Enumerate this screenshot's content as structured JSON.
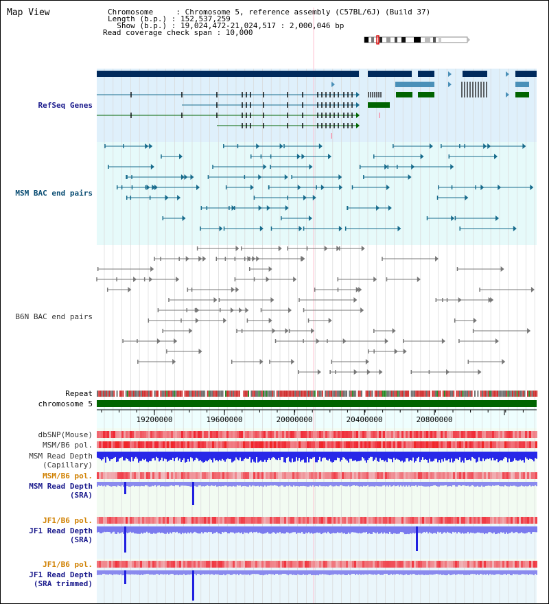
{
  "page": {
    "title": "Map View"
  },
  "info": {
    "line1": "Chromosome     : Chromosome 5, reference assembly (C57BL/6J) (Build 37)",
    "line2": "Length (b.p.) : 152,537,259",
    "line3": "  Show (b.p.) : 19,024,472-21,024,517 : 2,000,046 bp",
    "line4": "Read coverage check span : 10,000"
  },
  "tracks": {
    "refseq": "RefSeq Genes",
    "msm_bac": "MSM BAC end pairs",
    "b6n_bac": "B6N BAC end pairs",
    "repeat": "Repeat",
    "chromosome": "chromosome 5",
    "dbsnp": "dbSNP(Mouse)",
    "msm_b6_pol_1": "MSM/B6 pol.",
    "msm_read_depth_cap_1": "MSM Read Depth",
    "msm_read_depth_cap_2": "(Capillary)",
    "msm_b6_pol_2": "MSM/B6 pol.",
    "msm_read_depth_sra_1": "MSM Read Depth",
    "msm_read_depth_sra_2": "(SRA)",
    "jf1_b6_pol_1": "JF1/B6 pol.",
    "jf1_read_depth_sra_1": "JF1 Read Depth",
    "jf1_read_depth_sra_2": "(SRA)",
    "jf1_b6_pol_2": "JF1/B6 pol.",
    "jf1_read_depth_trim_1": "JF1 Read Depth",
    "jf1_read_depth_trim_2": "(SRA trimmed)"
  },
  "axis": {
    "ticks": [
      "19200000",
      "19600000",
      "20000000",
      "20400000",
      "20800000"
    ]
  },
  "colors": {
    "refseq_bg": "#dff0fb",
    "msm_bg": "#e6fafa",
    "depth_bg": "#eefaee",
    "navy": "#002a5c",
    "green": "#006400",
    "teal": "#176b8c",
    "gray": "#777777",
    "red": "#e0302a",
    "blue": "#2020ff"
  }
}
